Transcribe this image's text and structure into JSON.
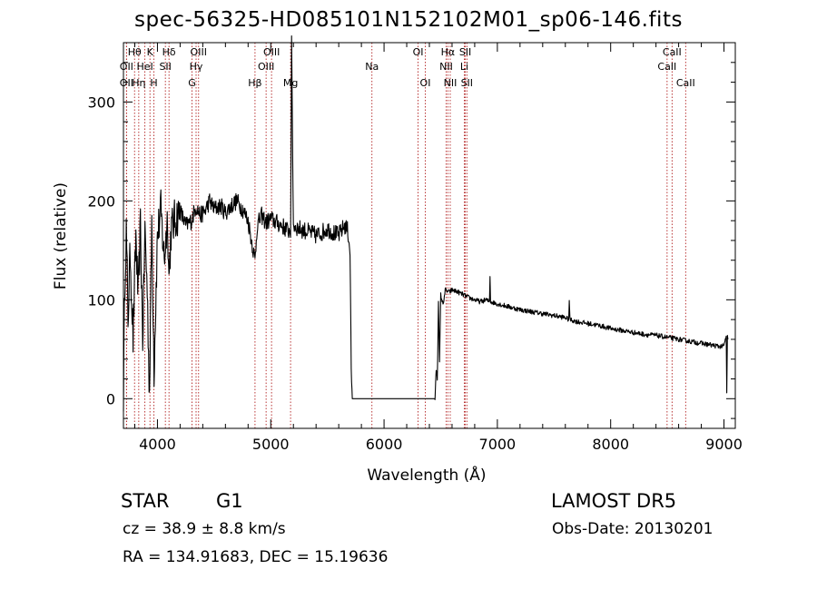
{
  "chart_data": {
    "type": "line",
    "title": "spec-56325-HD085101N152102M01_sp06-146.fits",
    "xlabel": "Wavelength (Å)",
    "ylabel": "Flux (relative)",
    "xlim": [
      3700,
      9100
    ],
    "ylim": [
      -30,
      360
    ],
    "xticks": [
      4000,
      5000,
      6000,
      7000,
      8000,
      9000
    ],
    "yticks": [
      0,
      100,
      200,
      300
    ],
    "grid": false,
    "series_color": "#000000",
    "line_marker_color": "#b22222",
    "spectrum": {
      "x": [
        3700,
        3712,
        3725,
        3740,
        3760,
        3785,
        3810,
        3830,
        3850,
        3870,
        3890,
        3910,
        3930,
        3950,
        3970,
        4000,
        4030,
        4060,
        4090,
        4101,
        4120,
        4150,
        4200,
        4250,
        4300,
        4340,
        4380,
        4420,
        4460,
        4500,
        4560,
        4600,
        4650,
        4700,
        4750,
        4800,
        4861,
        4880,
        4920,
        4960,
        5000,
        5050,
        5100,
        5150,
        5175,
        5184,
        5200,
        5250,
        5300,
        5350,
        5400,
        5450,
        5500,
        5550,
        5600,
        5650,
        5680,
        5700,
        5710,
        5720,
        5730,
        5740,
        6400,
        6440,
        6450,
        6460,
        6470,
        6480,
        6490,
        6500,
        6520,
        6540,
        6563,
        6580,
        6600,
        6650,
        6700,
        6750,
        6800,
        6850,
        6900,
        6930,
        6935,
        6940,
        7000,
        7100,
        7200,
        7300,
        7400,
        7500,
        7600,
        7630,
        7635,
        7640,
        7700,
        7800,
        7900,
        8000,
        8100,
        8200,
        8300,
        8400,
        8500,
        8600,
        8700,
        8800,
        8900,
        8950,
        9000,
        9020,
        9025,
        9030,
        9035
      ],
      "y": [
        5,
        120,
        170,
        80,
        150,
        60,
        165,
        100,
        175,
        60,
        170,
        110,
        5,
        180,
        30,
        165,
        190,
        140,
        185,
        120,
        170,
        180,
        190,
        175,
        180,
        195,
        185,
        190,
        200,
        192,
        195,
        188,
        195,
        200,
        192,
        180,
        140,
        175,
        185,
        178,
        182,
        178,
        175,
        170,
        170,
        358,
        175,
        172,
        170,
        168,
        165,
        168,
        172,
        168,
        165,
        175,
        170,
        150,
        30,
        0,
        0,
        0,
        0,
        0,
        0,
        30,
        20,
        100,
        35,
        105,
        95,
        110,
        108,
        108,
        110,
        108,
        105,
        102,
        100,
        98,
        100,
        98,
        125,
        98,
        96,
        93,
        90,
        88,
        86,
        84,
        82,
        80,
        100,
        80,
        78,
        76,
        74,
        71,
        69,
        67,
        65,
        64,
        62,
        60,
        58,
        56,
        54,
        53,
        53,
        64,
        5,
        64,
        60
      ]
    },
    "lines": [
      {
        "label": "Hθ",
        "x": 3798,
        "row": 1
      },
      {
        "label": "OII",
        "x": 3727,
        "row": 2
      },
      {
        "label": "OII",
        "x": 3727,
        "row": 3
      },
      {
        "label": "K",
        "x": 3934,
        "row": 1
      },
      {
        "label": "HeI",
        "x": 3889,
        "row": 2
      },
      {
        "label": "Hη",
        "x": 3835,
        "row": 3
      },
      {
        "label": "H",
        "x": 3969,
        "row": 3
      },
      {
        "label": "Hδ",
        "x": 4102,
        "row": 1
      },
      {
        "label": "SII",
        "x": 4070,
        "row": 2
      },
      {
        "label": "OIII",
        "x": 4363,
        "row": 1
      },
      {
        "label": "Hγ",
        "x": 4341,
        "row": 2
      },
      {
        "label": "G",
        "x": 4305,
        "row": 3
      },
      {
        "label": "OIII",
        "x": 5007,
        "row": 1
      },
      {
        "label": "OIII",
        "x": 4959,
        "row": 2
      },
      {
        "label": "Hβ",
        "x": 4861,
        "row": 3
      },
      {
        "label": "Mg",
        "x": 5175,
        "row": 3
      },
      {
        "label": "Na",
        "x": 5893,
        "row": 2
      },
      {
        "label": "OI",
        "x": 6300,
        "row": 1
      },
      {
        "label": "OI",
        "x": 6364,
        "row": 3
      },
      {
        "label": "Hα",
        "x": 6563,
        "row": 1
      },
      {
        "label": "SII",
        "x": 6717,
        "row": 1
      },
      {
        "label": "NII",
        "x": 6548,
        "row": 2
      },
      {
        "label": "Li",
        "x": 6708,
        "row": 2
      },
      {
        "label": "NII",
        "x": 6584,
        "row": 3
      },
      {
        "label": "SII",
        "x": 6731,
        "row": 3
      },
      {
        "label": "CaII",
        "x": 8542,
        "row": 1
      },
      {
        "label": "CaII",
        "x": 8498,
        "row": 2
      },
      {
        "label": "CaII",
        "x": 8662,
        "row": 3
      }
    ]
  },
  "info": {
    "obj_type": "STAR",
    "subclass": "G1",
    "survey": "LAMOST DR5",
    "cz": "cz = 38.9 ± 8.8 km/s",
    "obs_date": "Obs-Date: 20130201",
    "radec": "RA = 134.91683, DEC =  15.19636"
  }
}
